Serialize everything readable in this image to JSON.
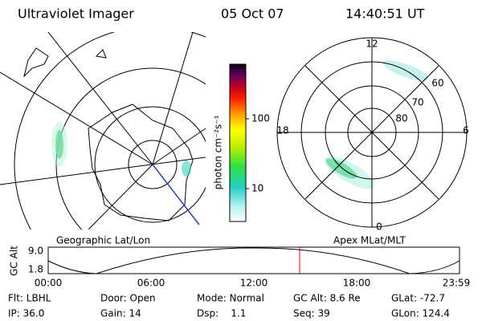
{
  "header": {
    "title": "Ultraviolet Imager",
    "date": "05 Oct 07",
    "time": "14:40:51 UT"
  },
  "colorbar": {
    "label": "photon cm⁻²s⁻¹",
    "ticks": [
      "100",
      "10"
    ]
  },
  "left_panel": {
    "label": "Geographic Lat/Lon"
  },
  "right_panel": {
    "label": "Apex MLat/MLT",
    "mlt_labels": [
      "12",
      "18",
      "6",
      "0"
    ],
    "lat_labels": [
      "60",
      "70",
      "80"
    ]
  },
  "altitude_plot": {
    "y_label": "GC Alt",
    "y_ticks": [
      "9.0",
      "1.8"
    ],
    "x_ticks": [
      "00:00",
      "06:00",
      "12:00",
      "18:00",
      "23:59"
    ]
  },
  "footer": {
    "rows": [
      [
        "Flt: LBHL",
        "Door: Open",
        "Mode: Normal",
        "GC Alt: 8.6 Re",
        "GLat: -72.7"
      ],
      [
        "IP: 36.0",
        "Gain: 14",
        "Dsp:    1.1",
        "Seq: 39",
        "GLon: 124.4"
      ]
    ]
  }
}
